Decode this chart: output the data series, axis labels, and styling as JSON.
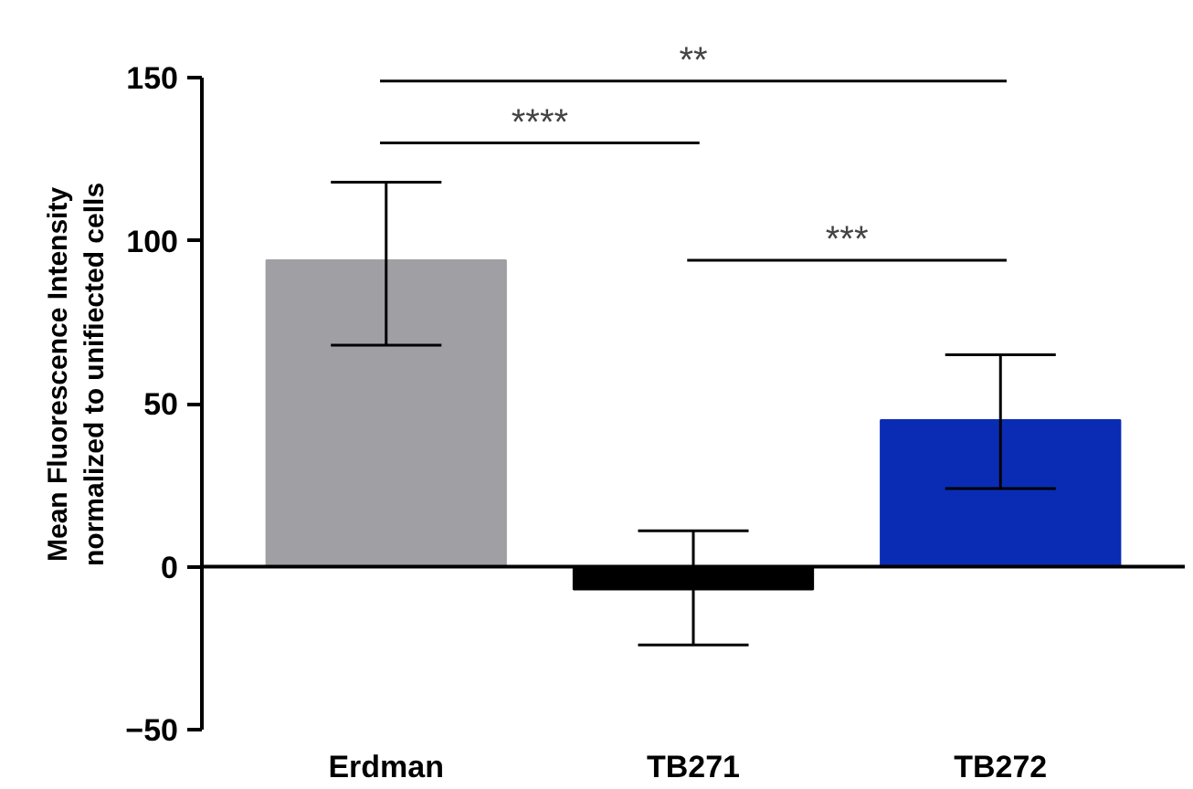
{
  "chart_data": {
    "type": "bar",
    "ylabel": "Mean Fluorescence Intensity\nnormalized to unifiected cells",
    "categories": [
      "Erdman",
      "TB271",
      "TB272"
    ],
    "values": [
      94,
      -7,
      45
    ],
    "colors": [
      "#a09fa4",
      "#000000",
      "#0a2cb5"
    ],
    "errors": [
      [
        68,
        118
      ],
      [
        -24,
        11
      ],
      [
        24,
        65
      ]
    ],
    "ylim": [
      -50,
      150
    ],
    "yticks": [
      -50,
      0,
      50,
      100,
      150
    ],
    "grid": false,
    "ref_lines": [
      {
        "axis": "y",
        "value": 0
      }
    ],
    "annotations": [
      "**",
      "****",
      "***"
    ]
  }
}
